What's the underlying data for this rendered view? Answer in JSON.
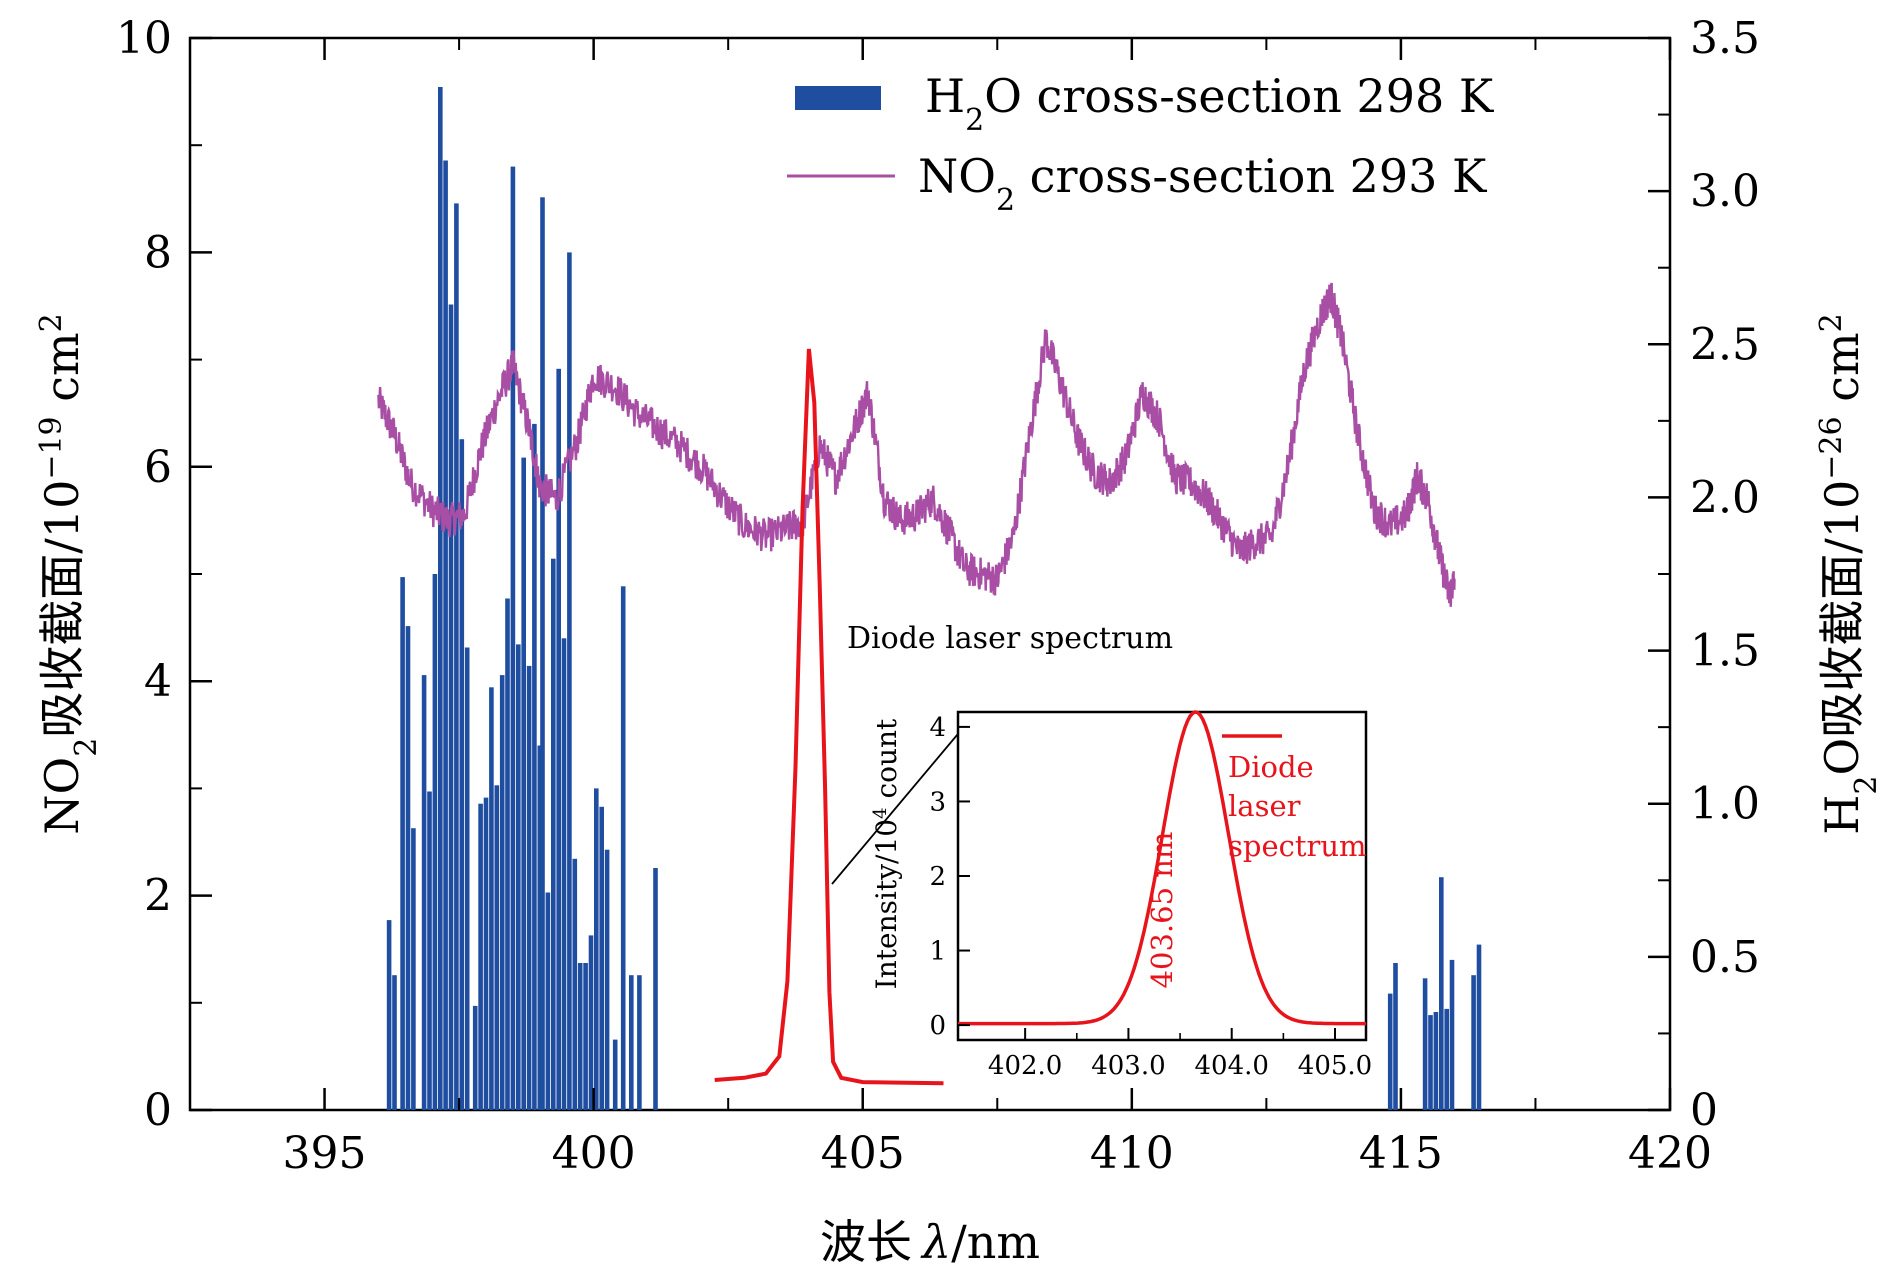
{
  "chart_data": {
    "type": "bar+line",
    "xlabel_main": "波长",
    "xlabel_symbol": "λ",
    "xlabel_unit": "/nm",
    "ylabel_left_parts": [
      "NO",
      "2",
      "吸收截面/10",
      "−19",
      " cm",
      "2"
    ],
    "ylabel_right_parts": [
      "H",
      "2",
      "O吸收截面/10",
      "−26",
      " cm",
      "2"
    ],
    "xlim": [
      392.5,
      420
    ],
    "ylim_left": [
      0,
      10
    ],
    "ylim_right": [
      0,
      3.5
    ],
    "x_ticks": [
      "395",
      "400",
      "405",
      "410",
      "415",
      "420"
    ],
    "y_left_ticks": [
      "0",
      "2",
      "4",
      "6",
      "8",
      "10"
    ],
    "y_right_ticks": [
      "0",
      "0.5",
      "1.0",
      "1.5",
      "2.0",
      "2.5",
      "3.0",
      "3.5"
    ],
    "colors": {
      "h2o": "#1f4ea1",
      "no2": "#a84ea5",
      "laser": "#e8141c"
    },
    "legend": [
      {
        "key": "h2o",
        "parts": [
          "H",
          "2",
          "O cross-section 298 K"
        ]
      },
      {
        "key": "no2",
        "parts": [
          "NO",
          "2",
          " cross-section 293 K"
        ]
      }
    ],
    "h2o_series": {
      "axis": "right",
      "points": [
        [
          396.2,
          0.62
        ],
        [
          396.3,
          0.44
        ],
        [
          396.45,
          1.74
        ],
        [
          396.55,
          1.58
        ],
        [
          396.65,
          0.92
        ],
        [
          396.85,
          1.42
        ],
        [
          396.95,
          1.04
        ],
        [
          397.05,
          1.75
        ],
        [
          397.15,
          3.34
        ],
        [
          397.25,
          3.1
        ],
        [
          397.35,
          2.63
        ],
        [
          397.45,
          2.96
        ],
        [
          397.55,
          2.19
        ],
        [
          397.65,
          1.51
        ],
        [
          397.8,
          0.34
        ],
        [
          397.9,
          1.0
        ],
        [
          398.0,
          1.02
        ],
        [
          398.1,
          1.38
        ],
        [
          398.2,
          1.06
        ],
        [
          398.3,
          1.42
        ],
        [
          398.4,
          1.67
        ],
        [
          398.5,
          3.08
        ],
        [
          398.6,
          1.52
        ],
        [
          398.7,
          2.13
        ],
        [
          398.8,
          1.45
        ],
        [
          398.9,
          2.24
        ],
        [
          399.0,
          1.19
        ],
        [
          399.05,
          2.98
        ],
        [
          399.15,
          0.71
        ],
        [
          399.25,
          1.8
        ],
        [
          399.35,
          2.42
        ],
        [
          399.45,
          1.54
        ],
        [
          399.55,
          2.8
        ],
        [
          399.65,
          0.82
        ],
        [
          399.75,
          0.48
        ],
        [
          399.85,
          0.48
        ],
        [
          399.95,
          0.57
        ],
        [
          400.05,
          1.05
        ],
        [
          400.15,
          0.99
        ],
        [
          400.25,
          0.85
        ],
        [
          400.4,
          0.23
        ],
        [
          400.55,
          1.71
        ],
        [
          400.7,
          0.44
        ],
        [
          400.85,
          0.44
        ],
        [
          401.15,
          0.79
        ],
        [
          414.8,
          0.38
        ],
        [
          414.9,
          0.48
        ],
        [
          415.45,
          0.43
        ],
        [
          415.55,
          0.31
        ],
        [
          415.65,
          0.32
        ],
        [
          415.75,
          0.76
        ],
        [
          415.85,
          0.33
        ],
        [
          415.95,
          0.49
        ],
        [
          416.35,
          0.44
        ],
        [
          416.45,
          0.54
        ]
      ]
    },
    "no2_series": {
      "axis": "left",
      "anchors": [
        [
          396.0,
          6.62
        ],
        [
          396.3,
          6.3
        ],
        [
          396.6,
          5.85
        ],
        [
          397.0,
          5.6
        ],
        [
          397.3,
          5.5
        ],
        [
          397.6,
          5.55
        ],
        [
          397.9,
          6.15
        ],
        [
          398.2,
          6.6
        ],
        [
          398.5,
          6.95
        ],
        [
          398.8,
          6.35
        ],
        [
          399.0,
          5.82
        ],
        [
          399.3,
          5.7
        ],
        [
          399.7,
          6.25
        ],
        [
          400.0,
          6.85
        ],
        [
          400.4,
          6.75
        ],
        [
          400.8,
          6.5
        ],
        [
          401.2,
          6.35
        ],
        [
          401.6,
          6.2
        ],
        [
          402.0,
          6.0
        ],
        [
          402.4,
          5.7
        ],
        [
          402.8,
          5.45
        ],
        [
          403.2,
          5.35
        ],
        [
          403.6,
          5.42
        ],
        [
          403.9,
          5.5
        ],
        [
          404.2,
          6.2
        ],
        [
          404.5,
          5.9
        ],
        [
          404.8,
          6.3
        ],
        [
          405.1,
          6.7
        ],
        [
          405.4,
          5.7
        ],
        [
          405.7,
          5.5
        ],
        [
          406.0,
          5.55
        ],
        [
          406.3,
          5.7
        ],
        [
          406.6,
          5.4
        ],
        [
          406.9,
          5.05
        ],
        [
          407.2,
          5.0
        ],
        [
          407.5,
          4.95
        ],
        [
          407.8,
          5.35
        ],
        [
          408.1,
          6.3
        ],
        [
          408.4,
          7.2
        ],
        [
          408.7,
          6.75
        ],
        [
          409.0,
          6.25
        ],
        [
          409.3,
          5.95
        ],
        [
          409.6,
          5.85
        ],
        [
          409.9,
          6.1
        ],
        [
          410.2,
          6.7
        ],
        [
          410.5,
          6.45
        ],
        [
          410.8,
          5.9
        ],
        [
          411.1,
          5.85
        ],
        [
          411.4,
          5.7
        ],
        [
          411.7,
          5.45
        ],
        [
          412.0,
          5.2
        ],
        [
          412.3,
          5.3
        ],
        [
          412.6,
          5.35
        ],
        [
          412.9,
          6.0
        ],
        [
          413.2,
          6.9
        ],
        [
          413.5,
          7.4
        ],
        [
          413.7,
          7.6
        ],
        [
          413.9,
          7.2
        ],
        [
          414.2,
          6.3
        ],
        [
          414.5,
          5.6
        ],
        [
          414.8,
          5.45
        ],
        [
          415.1,
          5.55
        ],
        [
          415.3,
          5.9
        ],
        [
          415.5,
          5.7
        ],
        [
          415.7,
          5.2
        ],
        [
          415.9,
          4.8
        ],
        [
          416.0,
          4.95
        ]
      ]
    },
    "laser_series": {
      "axis": "left",
      "points": [
        [
          402.25,
          0.28
        ],
        [
          402.8,
          0.3
        ],
        [
          403.2,
          0.34
        ],
        [
          403.45,
          0.5
        ],
        [
          403.6,
          1.2
        ],
        [
          403.75,
          3.2
        ],
        [
          403.88,
          5.6
        ],
        [
          404.0,
          7.1
        ],
        [
          404.1,
          6.6
        ],
        [
          404.2,
          4.9
        ],
        [
          404.3,
          3.0
        ],
        [
          404.38,
          1.1
        ],
        [
          404.45,
          0.45
        ],
        [
          404.6,
          0.3
        ],
        [
          405.0,
          0.26
        ],
        [
          406.5,
          0.25
        ]
      ]
    },
    "inset": {
      "annotation": "Diode laser spectrum",
      "ylabel_parts": [
        "Intensity/10",
        "4",
        " count"
      ],
      "xlim": [
        401.35,
        405.3
      ],
      "ylim": [
        -0.2,
        4.2
      ],
      "x_ticks": [
        "402.0",
        "403.0",
        "404.0",
        "405.0"
      ],
      "y_ticks": [
        "0",
        "1",
        "2",
        "3",
        "4"
      ],
      "legend_lines": [
        "Diode",
        "laser",
        "spectrum"
      ],
      "peak_label": "403.65 nm",
      "peak_center": 403.65,
      "peak_amplitude": 4.2,
      "peak_sigma": 0.32,
      "baseline": 0.02
    }
  }
}
